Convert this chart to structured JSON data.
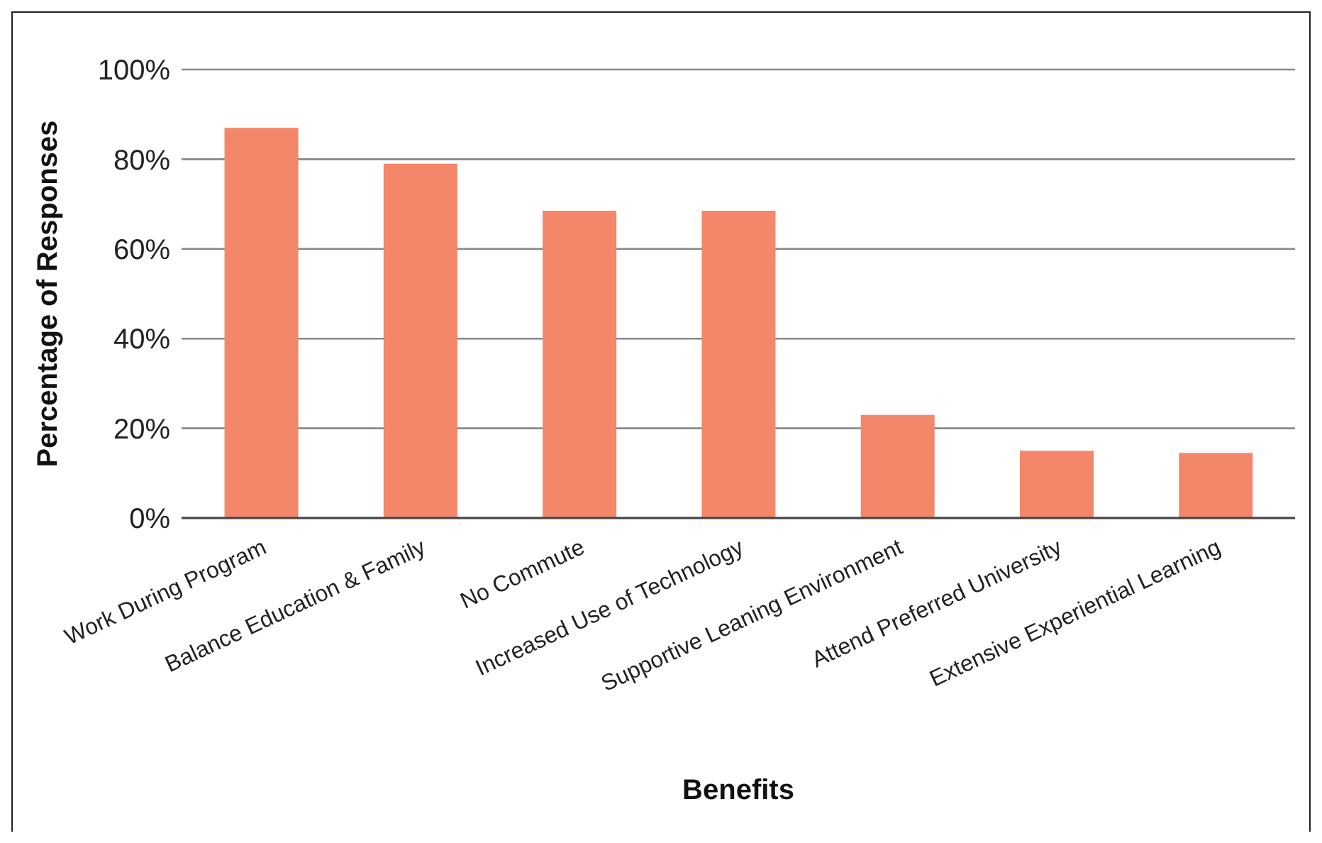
{
  "chart_data": {
    "type": "bar",
    "xlabel": "Benefits",
    "ylabel": "Percentage of Responses",
    "categories": [
      "Work During Program",
      "Balance Education & Family",
      "No Commute",
      "Increased Use of Technology",
      "Supportive Leaning Environment",
      "Attend Preferred University",
      "Extensive Experiential Learning"
    ],
    "values": [
      87,
      79,
      68.5,
      68.5,
      23,
      15,
      14.5
    ],
    "color": "#f4866a",
    "ylim": [
      0,
      100
    ],
    "yticks": [
      {
        "value": 0,
        "label": "0%"
      },
      {
        "value": 20,
        "label": "20%"
      },
      {
        "value": 40,
        "label": "40%"
      },
      {
        "value": 60,
        "label": "60%"
      },
      {
        "value": 80,
        "label": "80%"
      },
      {
        "value": 100,
        "label": "100%"
      }
    ],
    "grid": "y",
    "legend": false
  }
}
